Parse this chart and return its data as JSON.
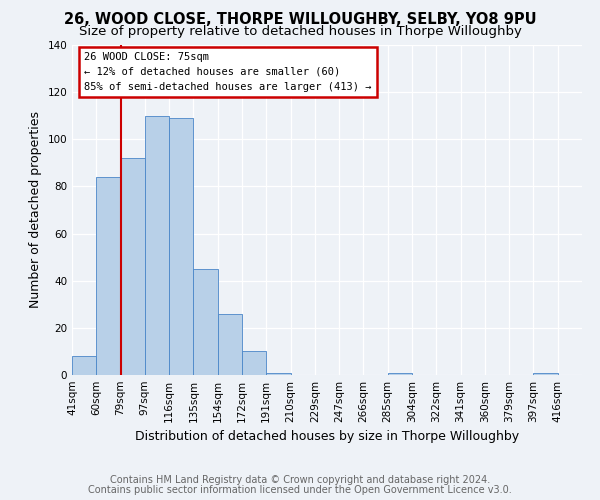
{
  "title": "26, WOOD CLOSE, THORPE WILLOUGHBY, SELBY, YO8 9PU",
  "subtitle": "Size of property relative to detached houses in Thorpe Willoughby",
  "xlabel": "Distribution of detached houses by size in Thorpe Willoughby",
  "ylabel": "Number of detached properties",
  "footer1": "Contains HM Land Registry data © Crown copyright and database right 2024.",
  "footer2": "Contains public sector information licensed under the Open Government Licence v3.0.",
  "bin_labels": [
    "41sqm",
    "60sqm",
    "79sqm",
    "97sqm",
    "116sqm",
    "135sqm",
    "154sqm",
    "172sqm",
    "191sqm",
    "210sqm",
    "229sqm",
    "247sqm",
    "266sqm",
    "285sqm",
    "304sqm",
    "322sqm",
    "341sqm",
    "360sqm",
    "379sqm",
    "397sqm",
    "416sqm"
  ],
  "bar_heights": [
    8,
    84,
    92,
    110,
    109,
    45,
    26,
    10,
    1,
    0,
    0,
    0,
    0,
    1,
    0,
    0,
    0,
    0,
    0,
    1,
    0
  ],
  "bar_color": "#b8d0e8",
  "bar_edge_color": "#4a86c8",
  "property_line_color": "#cc0000",
  "annotation_box_color": "#cc0000",
  "annotation_line1": "26 WOOD CLOSE: 75sqm",
  "annotation_line2": "← 12% of detached houses are smaller (60)",
  "annotation_line3": "85% of semi-detached houses are larger (413) →",
  "ylim": [
    0,
    140
  ],
  "yticks": [
    0,
    20,
    40,
    60,
    80,
    100,
    120,
    140
  ],
  "background_color": "#eef2f7",
  "title_fontsize": 10.5,
  "subtitle_fontsize": 9.5,
  "axis_label_fontsize": 9,
  "tick_fontsize": 7.5,
  "footer_fontsize": 7
}
